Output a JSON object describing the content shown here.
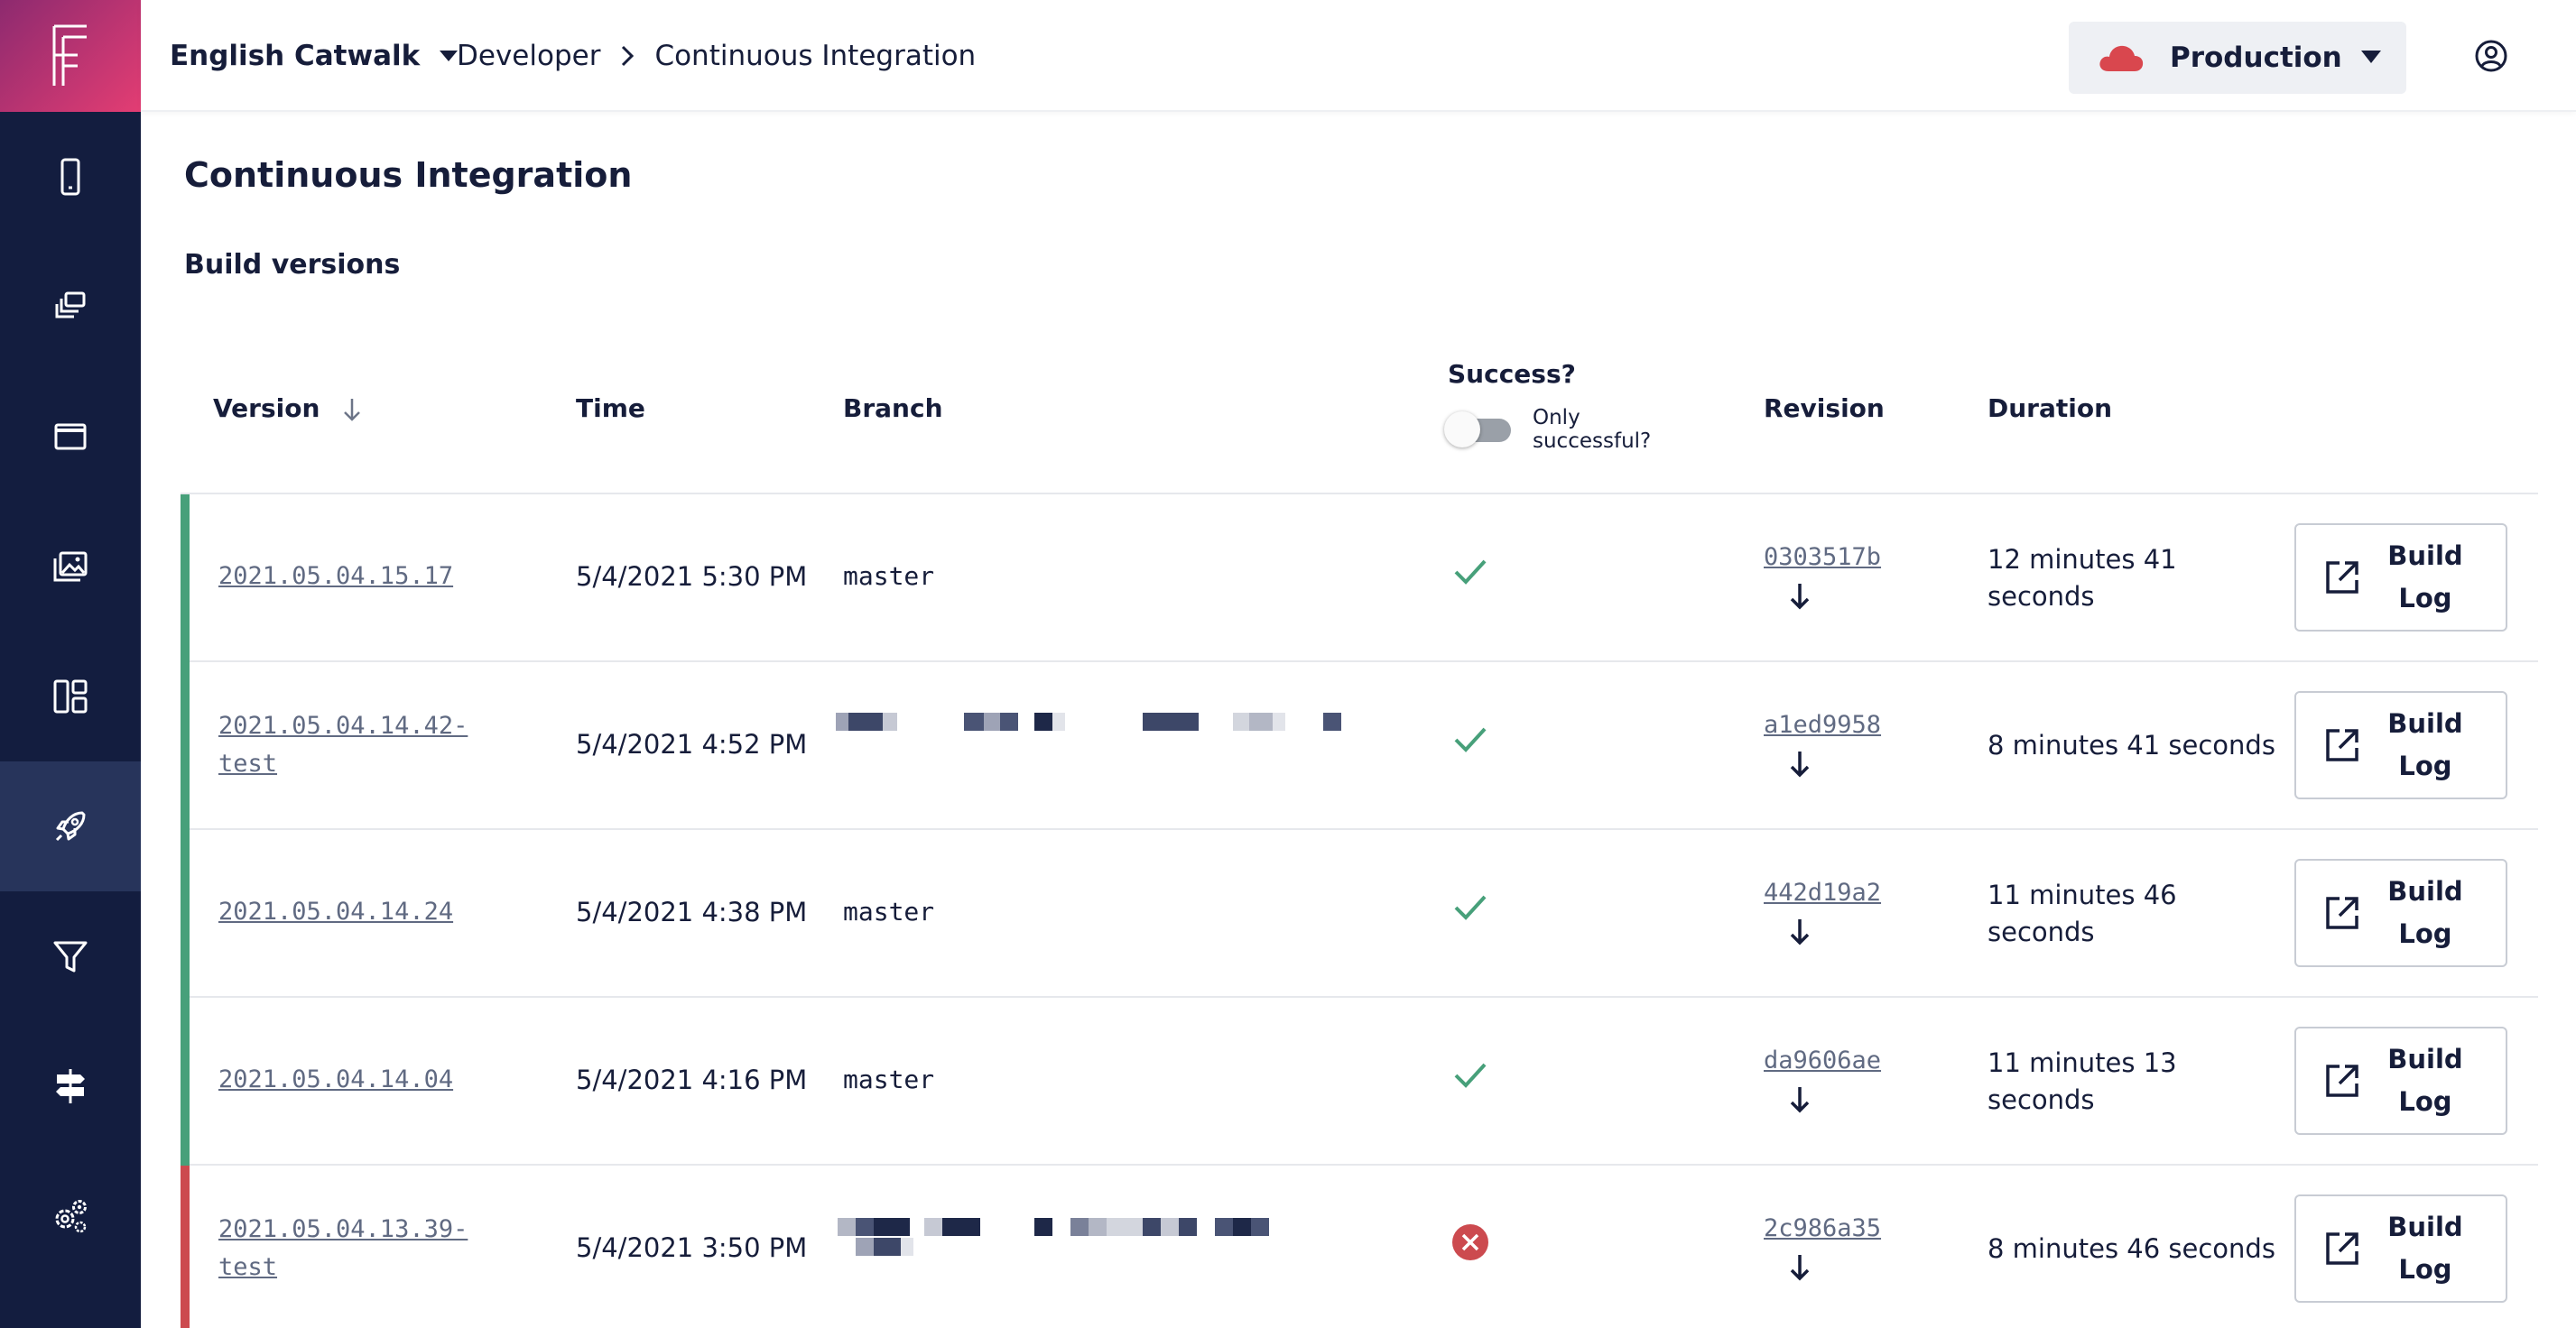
{
  "header": {
    "app_name": "English Catwalk",
    "breadcrumb": [
      "Developer",
      "Continuous Integration"
    ],
    "environment": "Production"
  },
  "page": {
    "title": "Continuous Integration",
    "section_title": "Build versions"
  },
  "table": {
    "columns": {
      "version": "Version",
      "time": "Time",
      "branch": "Branch",
      "success": "Success?",
      "revision": "Revision",
      "duration": "Duration"
    },
    "toggle_label": "Only successful?",
    "toggle_on": false,
    "build_log_label": "Build Log",
    "rows": [
      {
        "version": "2021.05.04.15.17",
        "time": "5/4/2021 5:30 PM",
        "branch": "master",
        "success": true,
        "revision": "0303517b",
        "duration": "12 minutes 41 seconds"
      },
      {
        "version": "2021.05.04.14.42-test",
        "time": "5/4/2021 4:52 PM",
        "branch": "",
        "success": true,
        "revision": "a1ed9958",
        "duration": "8 minutes 41 seconds"
      },
      {
        "version": "2021.05.04.14.24",
        "time": "5/4/2021 4:38 PM",
        "branch": "master",
        "success": true,
        "revision": "442d19a2",
        "duration": "11 minutes 46 seconds"
      },
      {
        "version": "2021.05.04.14.04",
        "time": "5/4/2021 4:16 PM",
        "branch": "master",
        "success": true,
        "revision": "da9606ae",
        "duration": "11 minutes 13 seconds"
      },
      {
        "version": "2021.05.04.13.39-test",
        "time": "5/4/2021 3:50 PM",
        "branch": "",
        "success": false,
        "revision": "2c986a35",
        "duration": "8 minutes 46 seconds"
      }
    ]
  },
  "sidebar": {
    "items": [
      {
        "icon": "mobile-icon"
      },
      {
        "icon": "layers-icon"
      },
      {
        "icon": "window-icon"
      },
      {
        "icon": "images-icon"
      },
      {
        "icon": "layout-icon"
      },
      {
        "icon": "rocket-icon",
        "active": true
      },
      {
        "icon": "filter-icon"
      },
      {
        "icon": "signpost-icon"
      },
      {
        "icon": "gears-icon"
      }
    ]
  },
  "colors": {
    "sidebar_bg": "#131d3f",
    "sidebar_active": "#27345b",
    "success": "#47a07a",
    "failure": "#cc4a4f",
    "environment_cloud": "#d9474e"
  }
}
